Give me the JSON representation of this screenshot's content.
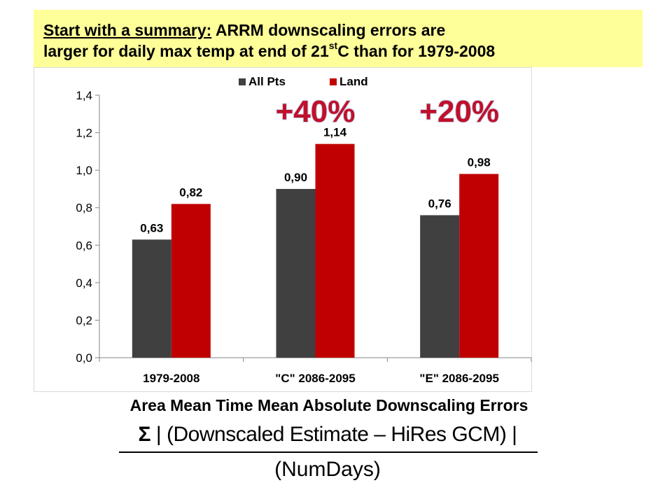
{
  "summary": {
    "lead": "Start with a summary:",
    "line1_rest": " ARRM downscaling errors are",
    "line2_pre": "larger for daily max temp at end of 21",
    "line2_sup": "st",
    "line2_post": "C than for 1979-2008"
  },
  "chart_data": {
    "type": "bar",
    "categories": [
      "1979-2008",
      "\"C\" 2086-2095",
      "\"E\" 2086-2095"
    ],
    "series": [
      {
        "name": "All Pts",
        "values": [
          0.63,
          0.9,
          0.76
        ],
        "labels": [
          "0,63",
          "0,90",
          "0,76"
        ],
        "color": "#404040"
      },
      {
        "name": "Land",
        "values": [
          0.82,
          1.14,
          0.98
        ],
        "labels": [
          "0,82",
          "1,14",
          "0,98"
        ],
        "color": "#c00000"
      }
    ],
    "ylim": [
      0,
      1.4
    ],
    "yticks": [
      0,
      0.2,
      0.4,
      0.6,
      0.8,
      1.0,
      1.2,
      1.4
    ],
    "ytick_labels": [
      "0,0",
      "0,2",
      "0,4",
      "0,6",
      "0,8",
      "1,0",
      "1,2",
      "1,4"
    ],
    "legend_position": "top",
    "grid": false,
    "annotations": [
      {
        "text": "+40%",
        "category_index": 1,
        "y": 1.31
      },
      {
        "text": "+20%",
        "category_index": 2,
        "y": 1.31
      }
    ],
    "annotation_color": "#c0102a"
  },
  "caption": {
    "title": "Area Mean Time Mean Absolute Downscaling Errors",
    "sigma": "Σ",
    "numerator": " | (Downscaled Estimate  –  HiRes GCM) |",
    "denominator": "(NumDays)"
  }
}
